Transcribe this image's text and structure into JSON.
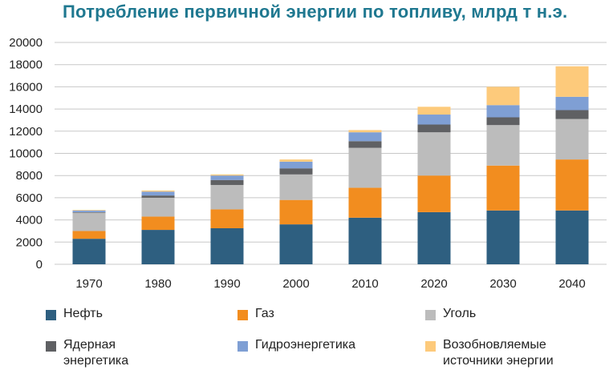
{
  "chart_data": {
    "type": "bar",
    "stacked": true,
    "title": "Потребление первичной энергии по топливу, млрд т н.э.",
    "categories": [
      "1970",
      "1980",
      "1990",
      "2000",
      "2010",
      "2020",
      "2030",
      "2040"
    ],
    "yticks": [
      "0",
      "2000",
      "4000",
      "6000",
      "8000",
      "10000",
      "12000",
      "14000",
      "16000",
      "18000",
      "20000"
    ],
    "ylim": [
      0,
      20000
    ],
    "grid": true,
    "legend_position": "bottom",
    "series": [
      {
        "name": "Нефть",
        "color": "#2e5f80",
        "values": [
          2300,
          3100,
          3250,
          3600,
          4200,
          4700,
          4850,
          4850
        ]
      },
      {
        "name": "Газ",
        "color": "#f28d1f",
        "values": [
          700,
          1200,
          1700,
          2200,
          2700,
          3300,
          4050,
          4600
        ]
      },
      {
        "name": "Уголь",
        "color": "#bcbcbc",
        "values": [
          1650,
          1700,
          2200,
          2300,
          3600,
          3900,
          3650,
          3650
        ]
      },
      {
        "name": "Ядерная энергетика",
        "color": "#5f6063",
        "values": [
          50,
          200,
          450,
          550,
          600,
          700,
          700,
          800
        ]
      },
      {
        "name": "Гидроэнергетика",
        "color": "#7f9fd4",
        "values": [
          150,
          350,
          400,
          600,
          800,
          900,
          1100,
          1200
        ]
      },
      {
        "name": "Возобновляемые источники энергии",
        "color": "#fdca7b",
        "values": [
          50,
          100,
          100,
          200,
          200,
          700,
          1650,
          2750
        ]
      }
    ]
  },
  "legend_labels": {
    "s0": "Нефть",
    "s1": "Газ",
    "s2": "Уголь",
    "s3_line1": "Ядерная",
    "s3_line2": "энергетика",
    "s4": "Гидроэнергетика",
    "s5_line1": "Возобновляемые",
    "s5_line2": "источники энергии"
  }
}
